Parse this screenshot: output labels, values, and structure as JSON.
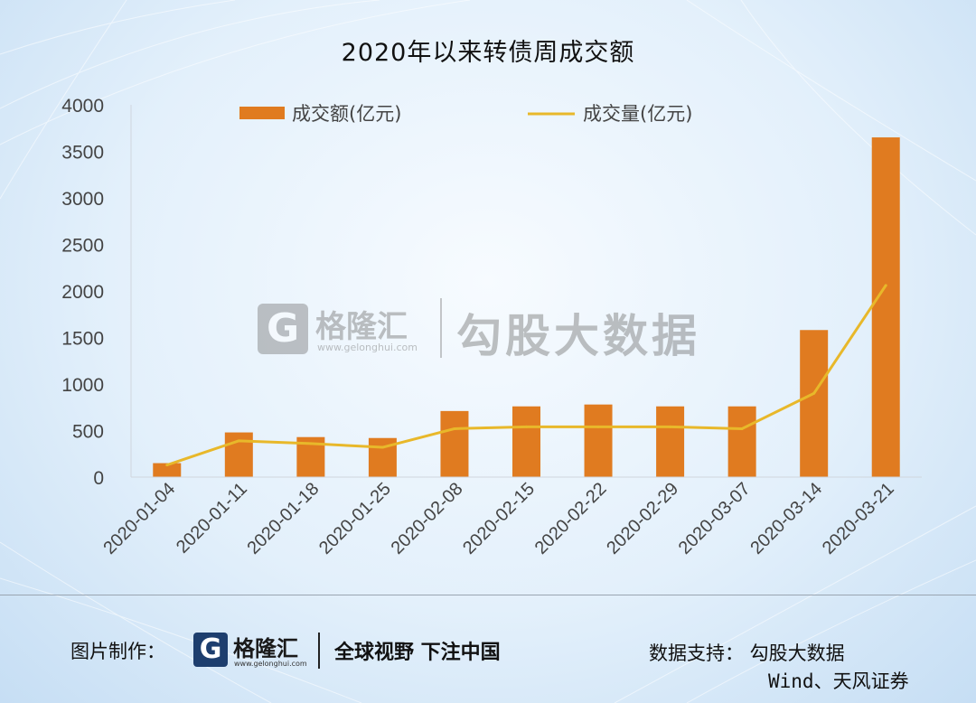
{
  "title": "2020年以来转债周成交额",
  "chart_data": {
    "type": "bar",
    "categories": [
      "2020-01-04",
      "2020-01-11",
      "2020-01-18",
      "2020-01-25",
      "2020-02-08",
      "2020-02-15",
      "2020-02-22",
      "2020-02-29",
      "2020-03-07",
      "2020-03-14",
      "2020-03-21"
    ],
    "series": [
      {
        "name": "成交额(亿元)",
        "type": "bar",
        "color": "#e07b20",
        "values": [
          150,
          480,
          430,
          420,
          710,
          760,
          780,
          760,
          760,
          1580,
          3650
        ]
      },
      {
        "name": "成交量(亿元)",
        "type": "line",
        "color": "#e8b82a",
        "values": [
          130,
          390,
          360,
          320,
          520,
          540,
          540,
          540,
          520,
          900,
          2060
        ]
      }
    ],
    "ylim": [
      0,
      4000
    ],
    "yticks": [
      0,
      500,
      1000,
      1500,
      2000,
      2500,
      3000,
      3500,
      4000
    ],
    "legend_position": "top",
    "grid": false
  },
  "watermark": {
    "logo_letter": "G",
    "name": "格隆汇",
    "url": "www.gelonghui.com",
    "text": "勾股大数据"
  },
  "footer": {
    "made_by_label": "图片制作：",
    "logo_letter": "G",
    "logo_name": "格隆汇",
    "logo_url": "www.gelonghui.com",
    "slogan": "全球视野 下注中国",
    "data_support": "数据支持： 勾股大数据",
    "data_sources": "Wind、天风证券"
  }
}
